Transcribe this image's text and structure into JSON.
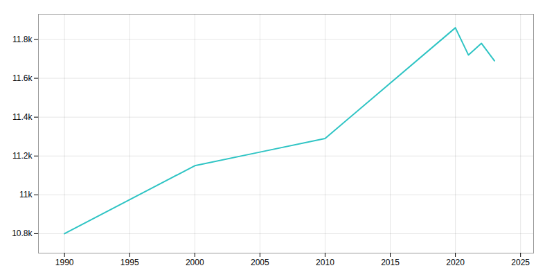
{
  "chart_data": {
    "type": "line",
    "x": [
      1990,
      2000,
      2005,
      2010,
      2020,
      2021,
      2022,
      2023
    ],
    "values": [
      10800,
      11150,
      11220,
      11290,
      11860,
      11720,
      11780,
      11690
    ],
    "color": "#2ec4c4",
    "xlim": [
      1988,
      2026
    ],
    "xticks": [
      1990,
      1995,
      2000,
      2005,
      2010,
      2015,
      2020,
      2025
    ],
    "ylim": [
      10700,
      11930
    ],
    "yticks": [
      {
        "value": 10800,
        "label": "10.8k"
      },
      {
        "value": 11000,
        "label": "11k"
      },
      {
        "value": 11200,
        "label": "11.2k"
      },
      {
        "value": 11400,
        "label": "11.4k"
      },
      {
        "value": 11600,
        "label": "11.6k"
      },
      {
        "value": 11800,
        "label": "11.8k"
      }
    ],
    "grid": true
  }
}
